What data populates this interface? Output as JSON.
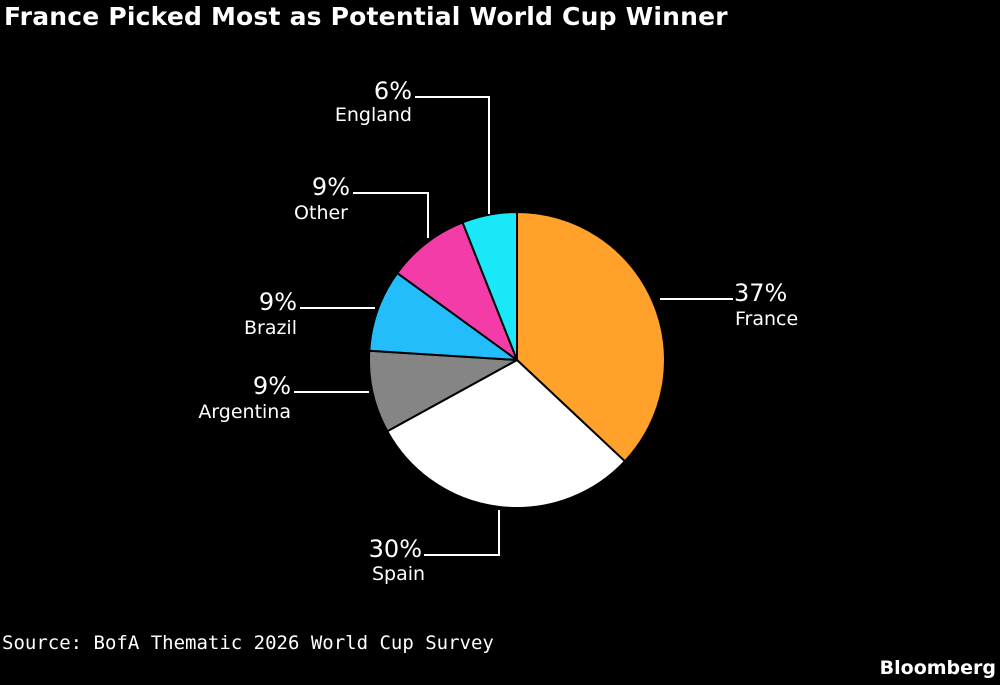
{
  "title": "France Picked Most as Potential World Cup Winner",
  "source": "Source: BofA Thematic 2026 World Cup Survey",
  "brand": "Bloomberg",
  "chart_data": {
    "type": "pie",
    "title": "France Picked Most as Potential World Cup Winner",
    "slices": [
      {
        "label": "France",
        "value": 37,
        "display": "37%",
        "color": "#ffa12b"
      },
      {
        "label": "Spain",
        "value": 30,
        "display": "30%",
        "color": "#ffffff"
      },
      {
        "label": "Argentina",
        "value": 9,
        "display": "9%",
        "color": "#858585"
      },
      {
        "label": "Brazil",
        "value": 9,
        "display": "9%",
        "color": "#24bdfb"
      },
      {
        "label": "Other",
        "value": 9,
        "display": "9%",
        "color": "#f43ca9"
      },
      {
        "label": "England",
        "value": 6,
        "display": "6%",
        "color": "#19e8f8"
      }
    ],
    "start": "12 o'clock",
    "direction": "clockwise",
    "legend": "none",
    "leader_color": "#ffffff"
  }
}
